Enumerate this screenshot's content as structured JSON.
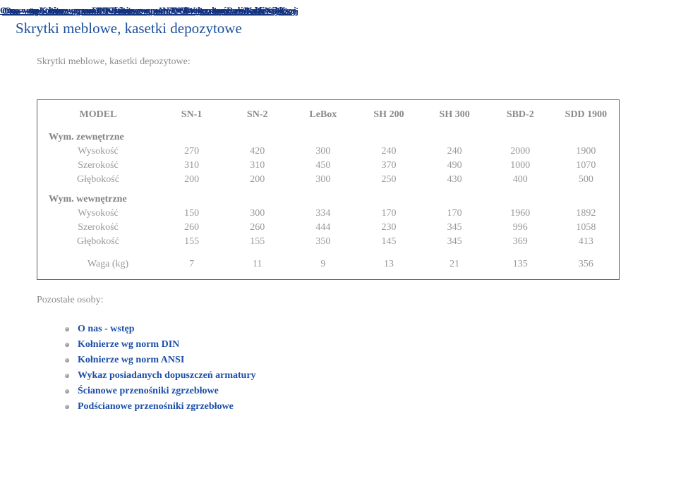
{
  "nav": {
    "note": "illegible overlapping link texts rendered on top of each other",
    "fragments": [
      "O nas - wstęp",
      "Kołnierze wg norm DIN",
      "Kołnierze wg norm ANSI",
      "Wykaz dopuszczeń",
      "Radar Najbliższej"
    ]
  },
  "page": {
    "title": "Skrytki meblowe, kasetki depozytowe",
    "intro": "Skrytki meblowe, kasetki depozytowe:",
    "related_heading": "Pozostałe osoby:"
  },
  "table": {
    "header": [
      "MODEL",
      "SN-1",
      "SN-2",
      "LeBox",
      "SH 200",
      "SH 300",
      "SBD-2",
      "SDD 1900"
    ],
    "sections": [
      {
        "label": "Wym. zewnętrzne",
        "rows": [
          {
            "label": "Wysokość",
            "values": [
              "270",
              "420",
              "300",
              "240",
              "240",
              "2000",
              "1900"
            ]
          },
          {
            "label": "Szerokość",
            "values": [
              "310",
              "310",
              "450",
              "370",
              "490",
              "1000",
              "1070"
            ]
          },
          {
            "label": "Głębokość",
            "values": [
              "200",
              "200",
              "300",
              "250",
              "430",
              "400",
              "500"
            ]
          }
        ]
      },
      {
        "label": "Wym. wewnętrzne",
        "rows": [
          {
            "label": "Wysokość",
            "values": [
              "150",
              "300",
              "334",
              "170",
              "170",
              "1960",
              "1892"
            ]
          },
          {
            "label": "Szerokość",
            "values": [
              "260",
              "260",
              "444",
              "230",
              "345",
              "996",
              "1058"
            ]
          },
          {
            "label": "Głębokość",
            "values": [
              "155",
              "155",
              "350",
              "145",
              "345",
              "369",
              "413"
            ]
          }
        ]
      }
    ],
    "weight_row": {
      "label": "Waga (kg)",
      "values": [
        "7",
        "11",
        "9",
        "13",
        "21",
        "135",
        "356"
      ]
    }
  },
  "links": [
    "O nas - wstęp",
    "Kołnierze wg norm DIN",
    "Kołnierze wg norm ANSI",
    "Wykaz posiadanych dopuszczeń armatury",
    "Ścianowe przenośniki zgrzebłowe",
    "Podścianowe przenośniki zgrzebłowe"
  ],
  "colors": {
    "title_blue": "#1b4f9c",
    "link_blue": "#1d4fa8",
    "nav_navy": "#14337f",
    "table_text_gray": "#8f8f8f",
    "table_border_gray": "#5c5c5c"
  }
}
